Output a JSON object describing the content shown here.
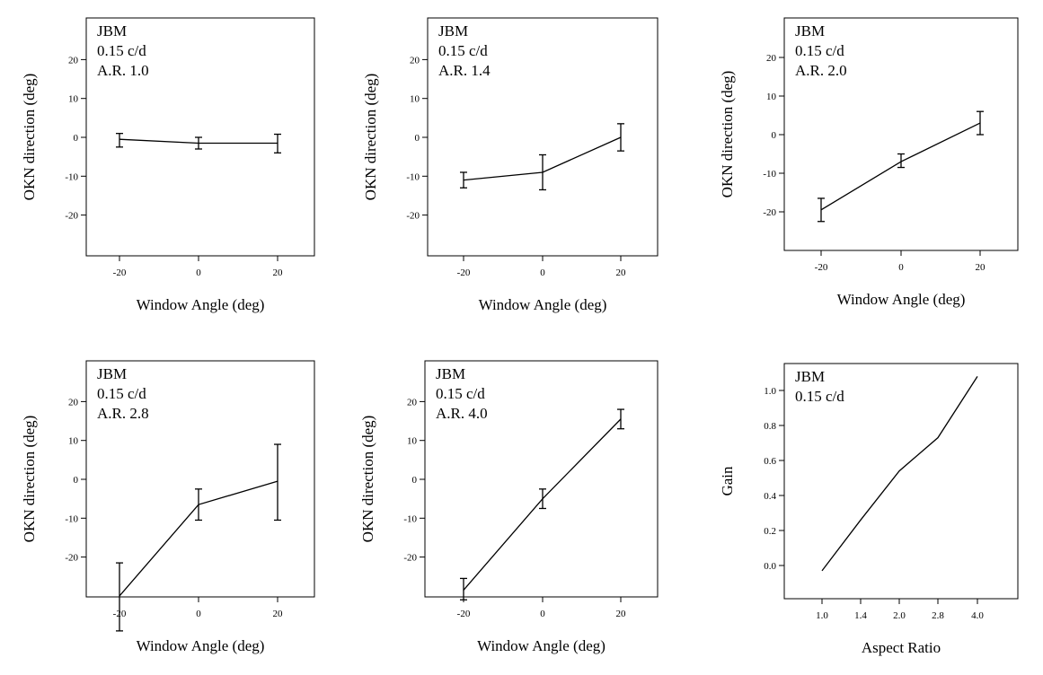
{
  "chart_data": [
    {
      "type": "line",
      "annotations": [
        "JBM",
        "0.15 c/d",
        "A.R. 1.0"
      ],
      "xlabel": "Window Angle (deg)",
      "ylabel": "OKN direction (deg)",
      "x": [
        -20,
        0,
        20
      ],
      "x_ticks": [
        "-20",
        "0",
        "20"
      ],
      "y_ticks": [
        "20",
        "10",
        "0",
        "-10",
        "-20"
      ],
      "xlim": [
        -30,
        30
      ],
      "ylim": [
        -30,
        30
      ],
      "series": [
        {
          "values": [
            -0.5,
            -1.5,
            -1.5
          ],
          "err_low": [
            -2.5,
            -3,
            -4
          ],
          "err_high": [
            1,
            0,
            0.8
          ]
        }
      ]
    },
    {
      "type": "line",
      "annotations": [
        "JBM",
        "0.15 c/d",
        "A.R. 1.4"
      ],
      "xlabel": "Window Angle (deg)",
      "ylabel": "OKN direction (deg)",
      "x": [
        -20,
        0,
        20
      ],
      "x_ticks": [
        "-20",
        "0",
        "20"
      ],
      "y_ticks": [
        "20",
        "10",
        "0",
        "-10",
        "-20"
      ],
      "xlim": [
        -30,
        30
      ],
      "ylim": [
        -30,
        30
      ],
      "series": [
        {
          "values": [
            -11,
            -9,
            0
          ],
          "err_low": [
            -13,
            -13.5,
            -3.5
          ],
          "err_high": [
            -9,
            -4.5,
            3.5
          ]
        }
      ]
    },
    {
      "type": "line",
      "annotations": [
        "JBM",
        "0.15 c/d",
        "A.R. 2.0"
      ],
      "xlabel": "Window Angle (deg)",
      "ylabel": "OKN direction (deg)",
      "x": [
        -20,
        0,
        20
      ],
      "x_ticks": [
        "-20",
        "0",
        "20"
      ],
      "y_ticks": [
        "20",
        "10",
        "0",
        "-10",
        "-20"
      ],
      "xlim": [
        -30,
        30
      ],
      "ylim": [
        -30,
        30
      ],
      "series": [
        {
          "values": [
            -19.5,
            -7,
            3
          ],
          "err_low": [
            -22.5,
            -8.5,
            0
          ],
          "err_high": [
            -16.5,
            -5,
            6
          ]
        }
      ]
    },
    {
      "type": "line",
      "annotations": [
        "JBM",
        "0.15 c/d",
        "A.R. 2.8"
      ],
      "xlabel": "Window Angle (deg)",
      "ylabel": "OKN direction (deg)",
      "x": [
        -20,
        0,
        20
      ],
      "x_ticks": [
        "-20",
        "0",
        "20"
      ],
      "y_ticks": [
        "20",
        "10",
        "0",
        "-10",
        "-20"
      ],
      "xlim": [
        -30,
        30
      ],
      "ylim": [
        -30,
        30
      ],
      "series": [
        {
          "values": [
            -30,
            -6.5,
            -0.5
          ],
          "err_low": [
            -39,
            -10.5,
            -10.5
          ],
          "err_high": [
            -21.5,
            -2.5,
            9
          ]
        }
      ]
    },
    {
      "type": "line",
      "annotations": [
        "JBM",
        "0.15 c/d",
        "A.R. 4.0"
      ],
      "xlabel": "Window Angle (deg)",
      "ylabel": "OKN direction (deg)",
      "x": [
        -20,
        0,
        20
      ],
      "x_ticks": [
        "-20",
        "0",
        "20"
      ],
      "y_ticks": [
        "20",
        "10",
        "0",
        "-10",
        "-20"
      ],
      "xlim": [
        -30,
        30
      ],
      "ylim": [
        -30,
        30
      ],
      "series": [
        {
          "values": [
            -28.5,
            -5,
            15.5
          ],
          "err_low": [
            -31,
            -7.5,
            13
          ],
          "err_high": [
            -25.5,
            -2.5,
            18
          ]
        }
      ]
    },
    {
      "type": "line",
      "annotations": [
        "JBM",
        "0.15 c/d"
      ],
      "xlabel": "Aspect Ratio",
      "ylabel": "Gain",
      "x": [
        1.0,
        1.4,
        2.0,
        2.8,
        4.0
      ],
      "x_ticks": [
        "1.0",
        "1.4",
        "2.0",
        "2.8",
        "4.0"
      ],
      "y_ticks": [
        "1.0",
        "0.8",
        "0.6",
        "0.4",
        "0.2",
        "0.0"
      ],
      "xlim": [
        0,
        5
      ],
      "ylim": [
        -0.2,
        1.2
      ],
      "series": [
        {
          "values": [
            -0.03,
            0.26,
            0.54,
            0.73,
            1.08
          ]
        }
      ]
    }
  ]
}
